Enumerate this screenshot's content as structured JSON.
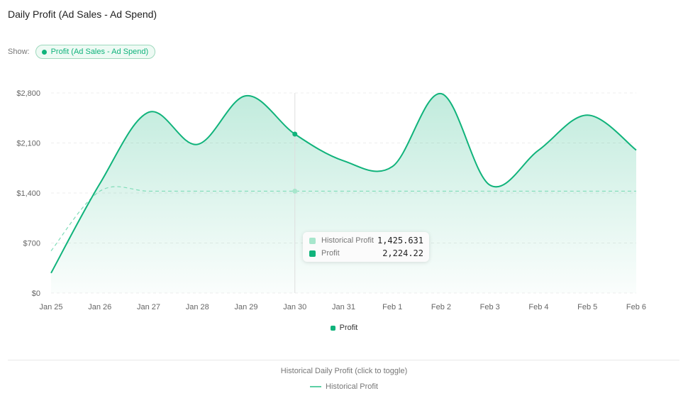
{
  "title": "Daily Profit (Ad Sales - Ad Spend)",
  "show": {
    "label": "Show:",
    "pill": "Profit (Ad Sales - Ad Spend)"
  },
  "colors": {
    "accent": "#10b37b",
    "historical": "#7fdcb8",
    "grid": "#eeeeee"
  },
  "tooltip": {
    "rows": [
      {
        "label": "Historical Profit",
        "value": "1,425.631"
      },
      {
        "label": "Profit",
        "value": "2,224.22"
      }
    ]
  },
  "legend": {
    "profit": "Profit"
  },
  "historical": {
    "title": "Historical Daily Profit (click to toggle)",
    "label": "Historical Profit"
  },
  "chart_data": {
    "type": "area",
    "x": [
      "Jan 25",
      "Jan 26",
      "Jan 27",
      "Jan 28",
      "Jan 29",
      "Jan 30",
      "Jan 31",
      "Feb 1",
      "Feb 2",
      "Feb 3",
      "Feb 4",
      "Feb 5",
      "Feb 6"
    ],
    "y_ticks": [
      "$0",
      "$700",
      "$1,400",
      "$2,100",
      "$2,800"
    ],
    "ylim": [
      0,
      2800
    ],
    "series": [
      {
        "name": "Profit",
        "values": [
          280,
          1530,
          2530,
          2080,
          2760,
          2224.22,
          1850,
          1770,
          2790,
          1510,
          2000,
          2490,
          2000
        ]
      },
      {
        "name": "Historical Profit",
        "values": [
          590,
          1425.631,
          1425.631,
          1425.631,
          1425.631,
          1425.631,
          1425.631,
          1425.631,
          1425.631,
          1425.631,
          1425.631,
          1425.631,
          1425.631
        ]
      }
    ],
    "highlight_index": 5,
    "grid": true,
    "legend": "bottom-center"
  }
}
